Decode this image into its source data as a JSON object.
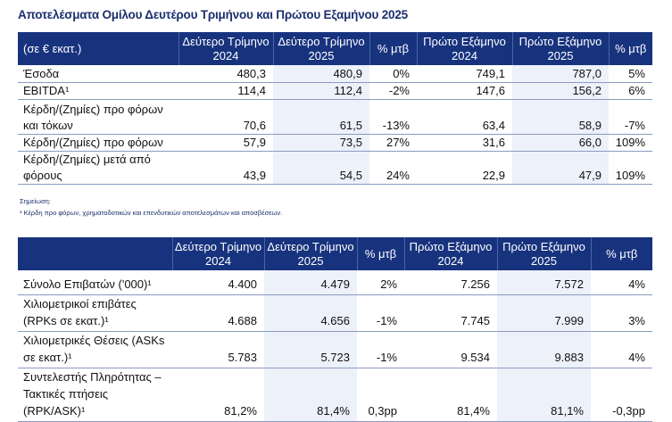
{
  "title": "Αποτελέσματα Ομίλου Δευτέρου Τριμήνου και Πρώτου Εξαμήνου 2025",
  "table1": {
    "headers": [
      "(σε € εκατ.)",
      "Δεύτερο Τρίμηνο 2024",
      "Δεύτερο Τρίμηνο 2025",
      "% μτβ",
      "Πρώτο Εξάμηνο 2024",
      "Πρώτο Εξάμηνο 2025",
      "% μτβ"
    ],
    "rows": [
      [
        "Έσοδα",
        "480,3",
        "480,9",
        "0%",
        "749,1",
        "787,0",
        "5%"
      ],
      [
        "EBITDA¹",
        "114,4",
        "112,4",
        "-2%",
        "147,6",
        "156,2",
        "6%"
      ],
      [
        "Κέρδη/(Ζημίες) προ φόρων και τόκων",
        "70,6",
        "61,5",
        "-13%",
        "63,4",
        "58,9",
        "-7%"
      ],
      [
        "Κέρδη/(Ζημίες) προ φόρων",
        "57,9",
        "73,5",
        "27%",
        "31,6",
        "66,0",
        "109%"
      ],
      [
        "Κέρδη/(Ζημίες) μετά από φόρους",
        "43,9",
        "54,5",
        "24%",
        "22,9",
        "47,9",
        "109%"
      ]
    ]
  },
  "note": {
    "label": "Σημείωση:",
    "text": "¹ Κέρδη προ φόρων, χρηματοδοτικών και επενδυτικών αποτελεσμάτων και αποσβέσεων."
  },
  "table2": {
    "headers": [
      "",
      "Δεύτερο Τρίμηνο 2024",
      "Δεύτερο Τρίμηνο 2025",
      "% μτβ",
      "Πρώτο Εξάμηνο 2024",
      "Πρώτο Εξάμηνο 2025",
      "% μτβ"
    ],
    "rows": [
      [
        "Σύνολο Επιβατών ('000)¹",
        "4.400",
        "4.479",
        "2%",
        "7.256",
        "7.572",
        "4%"
      ],
      [
        "Χιλιομετρικοί επιβάτες (RPKs σε εκατ.)¹",
        "4.688",
        "4.656",
        "-1%",
        "7.745",
        "7.999",
        "3%"
      ],
      [
        "Χιλιομετρικές Θέσεις (ASKs σε εκατ.)¹",
        "5.783",
        "5.723",
        "-1%",
        "9.534",
        "9.883",
        "4%"
      ],
      [
        "Συντελεστής Πληρότητας – Τακτικές πτήσεις (RPK/ASK)¹",
        "81,2%",
        "81,4%",
        "0,3pp",
        "81,4%",
        "81,1%",
        "-0,3pp"
      ]
    ]
  },
  "colors": {
    "header": "#18337e",
    "shade": "#edf1f9"
  }
}
